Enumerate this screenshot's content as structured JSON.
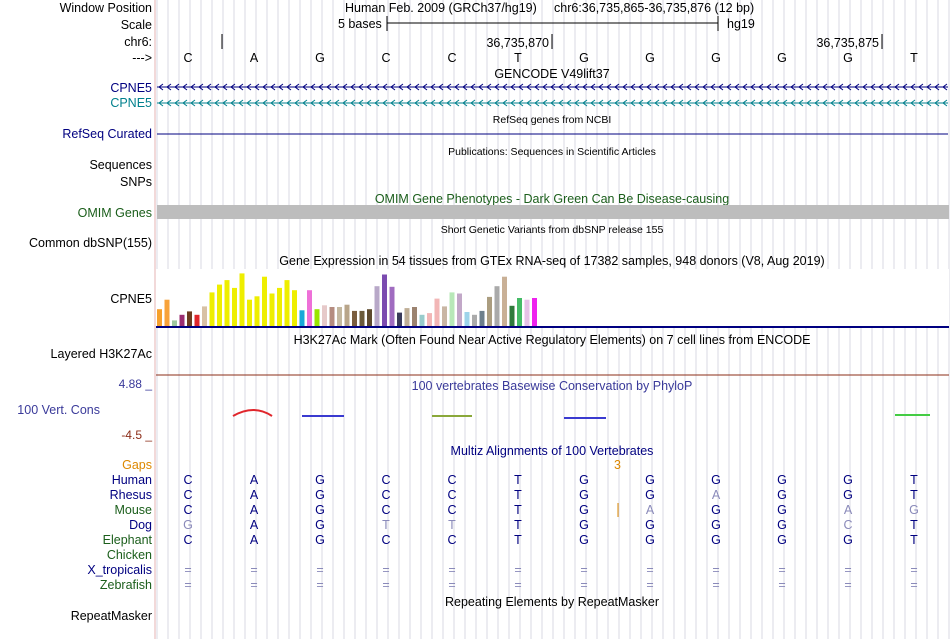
{
  "header": {
    "position_label": "Window Position",
    "assembly": "Human Feb. 2009 (GRCh37/hg19)",
    "region": "chr6:36,735,865-36,735,876 (12 bp)",
    "scale_label": "Scale",
    "scale_text": "5 bases",
    "scale_db": "hg19",
    "chrom_label": "chr6:",
    "coord1": "36,735,870",
    "coord2": "36,735,875",
    "strand_label": "--->"
  },
  "bases": [
    "C",
    "A",
    "G",
    "C",
    "C",
    "T",
    "G",
    "G",
    "G",
    "G",
    "G",
    "T"
  ],
  "tracks": {
    "gencode_title": "GENCODE V49lift37",
    "cpne5_1": "CPNE5",
    "cpne5_2": "CPNE5",
    "refseq_label": "RefSeq Curated",
    "refseq_title": "RefSeq genes from NCBI",
    "pubs_title": "Publications: Sequences in Scientific Articles",
    "sequences_label": "Sequences",
    "snps_label": "SNPs",
    "omim_title": "OMIM Gene Phenotypes - Dark Green Can Be Disease-causing",
    "omim_label": "OMIM Genes",
    "dbsnp_title": "Short Genetic Variants from dbSNP release 155",
    "dbsnp_label": "Common dbSNP(155)",
    "gtex_title": "Gene Expression in 54 tissues from GTEx RNA-seq of 17382 samples, 948 donors (V8, Aug 2019)",
    "gtex_label": "CPNE5",
    "h3k_title": "H3K27Ac Mark (Often Found Near Active Regulatory Elements) on 7 cell lines from ENCODE",
    "h3k_label": "Layered H3K27Ac",
    "cons_max": "4.88 _",
    "cons_title": "100 vertebrates Basewise Conservation by PhyloP",
    "cons_label": "100 Vert. Cons",
    "cons_min": "-4.5 _",
    "multiz_title": "Multiz Alignments of 100 Vertebrates",
    "gaps_label": "Gaps",
    "gap_value": "3",
    "repeat_title": "Repeating Elements by RepeatMasker",
    "repeat_label": "RepeatMasker"
  },
  "gtex": [
    {
      "value": 0.3,
      "color": "#f6a02c"
    },
    {
      "value": 0.47,
      "color": "#f7a23a"
    },
    {
      "value": 0.1,
      "color": "#9fc79f"
    },
    {
      "value": 0.2,
      "color": "#9b2d71"
    },
    {
      "value": 0.26,
      "color": "#6b3b1f"
    },
    {
      "value": 0.2,
      "color": "#e0262c"
    },
    {
      "value": 0.35,
      "color": "#d8c1a4"
    },
    {
      "value": 0.6,
      "color": "#eeee00"
    },
    {
      "value": 0.74,
      "color": "#eeee00"
    },
    {
      "value": 0.82,
      "color": "#eeee00"
    },
    {
      "value": 0.68,
      "color": "#eeee00"
    },
    {
      "value": 0.94,
      "color": "#eeee00"
    },
    {
      "value": 0.47,
      "color": "#eeee00"
    },
    {
      "value": 0.53,
      "color": "#eeee00"
    },
    {
      "value": 0.88,
      "color": "#eeee00"
    },
    {
      "value": 0.58,
      "color": "#eeee00"
    },
    {
      "value": 0.68,
      "color": "#eeee00"
    },
    {
      "value": 0.82,
      "color": "#eeee00"
    },
    {
      "value": 0.64,
      "color": "#eeee00"
    },
    {
      "value": 0.28,
      "color": "#17a8d8"
    },
    {
      "value": 0.64,
      "color": "#ee70d8"
    },
    {
      "value": 0.3,
      "color": "#99e600"
    },
    {
      "value": 0.37,
      "color": "#e6c9c9"
    },
    {
      "value": 0.34,
      "color": "#b58c80"
    },
    {
      "value": 0.34,
      "color": "#c4b8a0"
    },
    {
      "value": 0.38,
      "color": "#b8a58a"
    },
    {
      "value": 0.27,
      "color": "#7a5d3f"
    },
    {
      "value": 0.27,
      "color": "#6b5a3a"
    },
    {
      "value": 0.3,
      "color": "#5e4a2e"
    },
    {
      "value": 0.71,
      "color": "#b8a8c8"
    },
    {
      "value": 0.92,
      "color": "#7b4bb0"
    },
    {
      "value": 0.7,
      "color": "#a06cc0"
    },
    {
      "value": 0.24,
      "color": "#3a3a5a"
    },
    {
      "value": 0.32,
      "color": "#bfae96"
    },
    {
      "value": 0.34,
      "color": "#9c8370"
    },
    {
      "value": 0.2,
      "color": "#99cccc"
    },
    {
      "value": 0.23,
      "color": "#f2b6b6"
    },
    {
      "value": 0.49,
      "color": "#f2b6b6"
    },
    {
      "value": 0.35,
      "color": "#c9b6a4"
    },
    {
      "value": 0.6,
      "color": "#b8e8b8"
    },
    {
      "value": 0.58,
      "color": "#c2a8c8"
    },
    {
      "value": 0.25,
      "color": "#9dd4ea"
    },
    {
      "value": 0.2,
      "color": "#ababab"
    },
    {
      "value": 0.27,
      "color": "#6d7f8c"
    },
    {
      "value": 0.52,
      "color": "#ab9d80"
    },
    {
      "value": 0.71,
      "color": "#aaaaaa"
    },
    {
      "value": 0.88,
      "color": "#c9b096"
    },
    {
      "value": 0.36,
      "color": "#2f7a3b"
    },
    {
      "value": 0.5,
      "color": "#44bb66"
    },
    {
      "value": 0.47,
      "color": "#e6c2e6"
    },
    {
      "value": 0.5,
      "color": "#ee22ee"
    }
  ],
  "species": [
    {
      "name": "Human",
      "label_color": "#000080",
      "seq": [
        "C",
        "A",
        "G",
        "C",
        "C",
        "T",
        "G",
        "G",
        "G",
        "G",
        "G",
        "T"
      ],
      "faded": [
        0,
        0,
        0,
        0,
        0,
        0,
        0,
        0,
        0,
        0,
        0,
        0
      ]
    },
    {
      "name": "Rhesus",
      "label_color": "#000080",
      "seq": [
        "C",
        "A",
        "G",
        "C",
        "C",
        "T",
        "G",
        "G",
        "A",
        "G",
        "G",
        "T"
      ],
      "faded": [
        0,
        0,
        0,
        0,
        0,
        0,
        0,
        0,
        1,
        0,
        0,
        0
      ]
    },
    {
      "name": "Mouse",
      "label_color": "#1b5e1b",
      "seq": [
        "C",
        "A",
        "G",
        "C",
        "C",
        "T",
        "G",
        "A",
        "G",
        "G",
        "A",
        "G"
      ],
      "faded": [
        0,
        0,
        0,
        0,
        0,
        0,
        0,
        1,
        0,
        0,
        1,
        1
      ]
    },
    {
      "name": "Dog",
      "label_color": "#000080",
      "seq": [
        "G",
        "A",
        "G",
        "T",
        "T",
        "T",
        "G",
        "G",
        "G",
        "G",
        "C",
        "T"
      ],
      "faded": [
        1,
        0,
        0,
        1,
        1,
        0,
        0,
        0,
        0,
        0,
        1,
        0
      ]
    },
    {
      "name": "Elephant",
      "label_color": "#1b5e1b",
      "seq": [
        "C",
        "A",
        "G",
        "C",
        "C",
        "T",
        "G",
        "G",
        "G",
        "G",
        "G",
        "T"
      ],
      "faded": [
        0,
        0,
        0,
        0,
        0,
        0,
        0,
        0,
        0,
        0,
        0,
        0
      ]
    },
    {
      "name": "Chicken",
      "label_color": "#1b5e1b",
      "seq": [],
      "faded": []
    },
    {
      "name": "X_tropicalis",
      "label_color": "#000080",
      "seq": [
        "=",
        "=",
        "=",
        "=",
        "=",
        "=",
        "=",
        "=",
        "=",
        "=",
        "=",
        "="
      ],
      "faded": [
        1,
        1,
        1,
        1,
        1,
        1,
        1,
        1,
        1,
        1,
        1,
        1
      ]
    },
    {
      "name": "Zebrafish",
      "label_color": "#1b5e1b",
      "seq": [
        "=",
        "=",
        "=",
        "=",
        "=",
        "=",
        "=",
        "=",
        "=",
        "=",
        "=",
        "="
      ],
      "faded": [
        1,
        1,
        1,
        1,
        1,
        1,
        1,
        1,
        1,
        1,
        1,
        1
      ]
    }
  ],
  "colors": {
    "label_navy": "#000080",
    "label_teal": "#00808d",
    "label_green": "#1b5e1b",
    "gaps_orange": "#dd8800",
    "cons_blue": "#3a3a9a",
    "cons_min_brown": "#8b2c17",
    "grid": "#d9d9e3",
    "sidebar_line": "#e6b3b3",
    "omim_gray": "#bdbdbd",
    "faded_base": "#8a8aba"
  }
}
